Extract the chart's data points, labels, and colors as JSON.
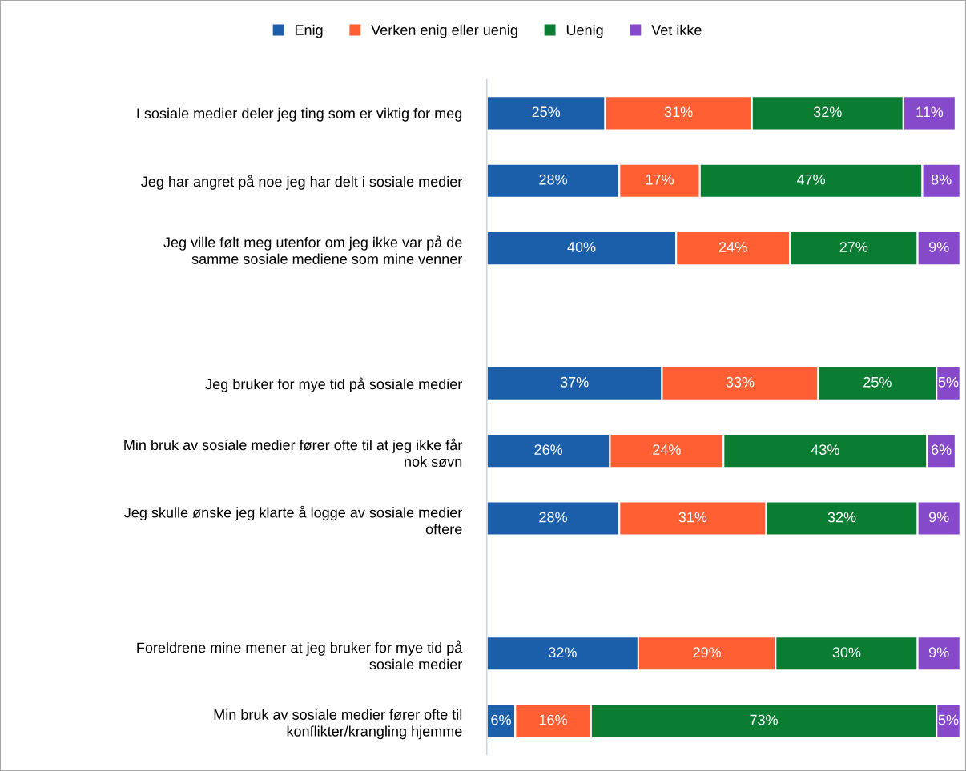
{
  "chart_data": {
    "type": "bar",
    "orientation": "horizontal",
    "stacked": true,
    "legend": "top",
    "grid": false,
    "categories": [
      "I sosiale medier deler jeg ting som er viktig for meg",
      "Jeg har angret på noe jeg har delt i sosiale medier",
      "Jeg ville følt meg utenfor om jeg ikke var på de\nsamme sosiale mediene som mine venner",
      null,
      "Jeg bruker for mye tid på sosiale medier",
      "Min bruk av sosiale medier fører ofte til at jeg ikke får\nnok søvn",
      "Jeg skulle ønske jeg klarte å logge av sosiale medier\noftere",
      null,
      "Foreldrene mine mener at jeg bruker for mye tid på\nsosiale medier",
      "Min bruk av sosiale medier fører ofte til\nkonflikter/krangling hjemme"
    ],
    "series": [
      {
        "name": "Enig",
        "color": "#1b5faa",
        "values": [
          25,
          28,
          40,
          null,
          37,
          26,
          28,
          null,
          32,
          6
        ],
        "value_labels": [
          "25%",
          "28%",
          "40%",
          null,
          "37%",
          "26%",
          "28%",
          null,
          "32%",
          "6%"
        ]
      },
      {
        "name": "Verken enig eller uenig",
        "color": "#ff5f33",
        "values": [
          31,
          17,
          24,
          null,
          33,
          24,
          31,
          null,
          29,
          16
        ],
        "value_labels": [
          "31%",
          "17%",
          "24%",
          null,
          "33%",
          "24%",
          "31%",
          null,
          "29%",
          "16%"
        ]
      },
      {
        "name": "Uenig",
        "color": "#0a7d33",
        "values": [
          32,
          47,
          27,
          null,
          25,
          43,
          32,
          null,
          30,
          73
        ],
        "value_labels": [
          "32%",
          "47%",
          "27%",
          null,
          "25%",
          "43%",
          "32%",
          null,
          "30%",
          "73%"
        ]
      },
      {
        "name": "Vet ikke",
        "color": "#8549c9",
        "values": [
          11,
          8,
          9,
          null,
          5,
          6,
          9,
          null,
          9,
          5
        ],
        "value_labels": [
          "11%",
          "8%",
          "9%",
          null,
          "5%",
          "6%",
          "9%",
          null,
          "9%",
          "5%"
        ]
      }
    ]
  }
}
